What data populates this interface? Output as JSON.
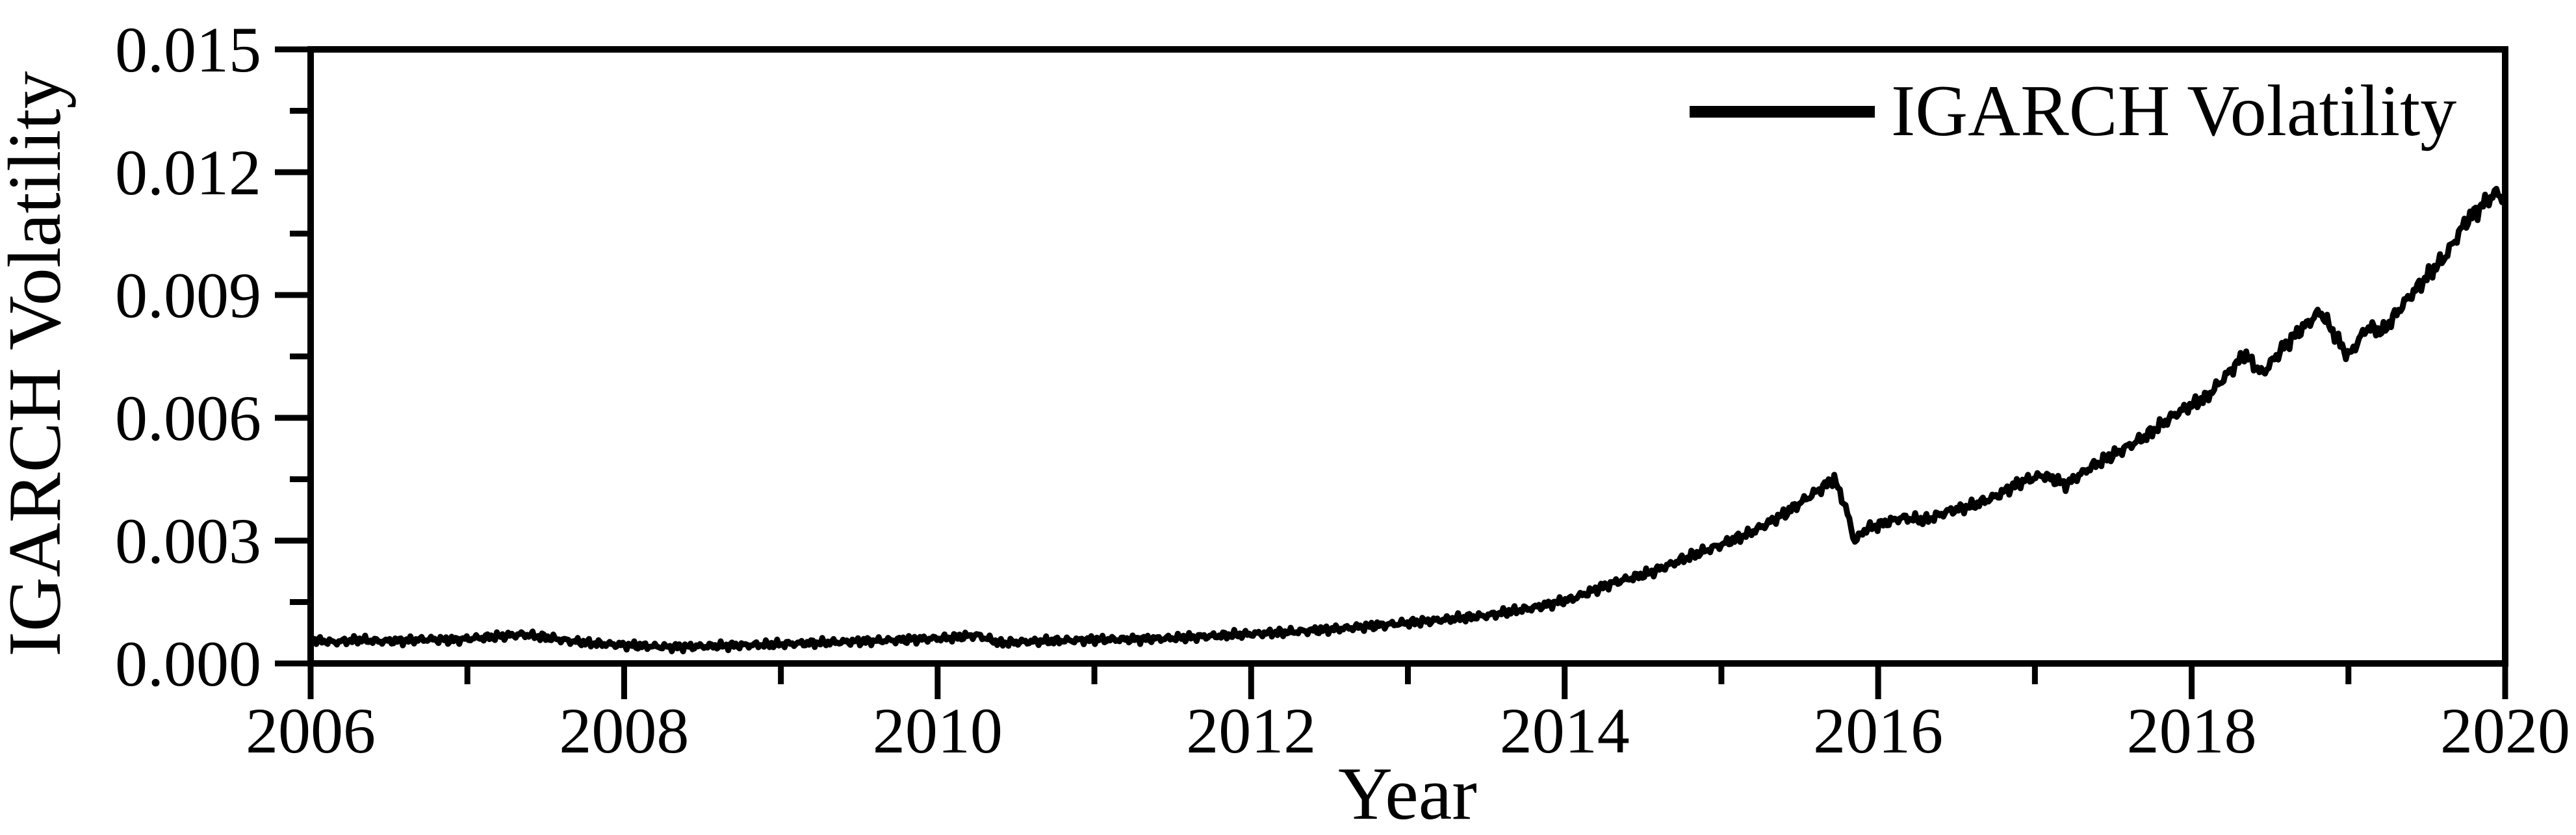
{
  "chart_data": {
    "type": "line",
    "title": "",
    "xlabel": "Year",
    "ylabel": "IGARCH Volatility",
    "grid": false,
    "legend_position": "top-right-inside",
    "legend": [
      {
        "label": "IGARCH Volatility",
        "color": "#000000"
      }
    ],
    "axis_color": "#000000",
    "line_color": "#000000",
    "background_color": "#ffffff",
    "xlim": [
      2006,
      2020
    ],
    "ylim": [
      0.0,
      0.015
    ],
    "x_ticks_major": [
      2006,
      2008,
      2010,
      2012,
      2014,
      2016,
      2018,
      2020
    ],
    "x_ticks_minor": [
      2007,
      2009,
      2011,
      2013,
      2015,
      2017,
      2019
    ],
    "x_tick_labels": [
      "2006",
      "2008",
      "2010",
      "2012",
      "2014",
      "2016",
      "2018",
      "2020"
    ],
    "y_ticks_major": [
      0.0,
      0.003,
      0.006,
      0.009,
      0.012,
      0.015
    ],
    "y_tick_minor_step": 0.0015,
    "y_tick_labels": [
      "0.000",
      "0.003",
      "0.006",
      "0.009",
      "0.012",
      "0.015"
    ],
    "series": [
      {
        "name": "IGARCH Volatility",
        "color": "#000000",
        "points": [
          [
            2006.0,
            0.00058
          ],
          [
            2006.15,
            0.00052
          ],
          [
            2006.3,
            0.00058
          ],
          [
            2006.45,
            0.00054
          ],
          [
            2006.6,
            0.00056
          ],
          [
            2006.75,
            0.00059
          ],
          [
            2006.9,
            0.00057
          ],
          [
            2007.05,
            0.00062
          ],
          [
            2007.2,
            0.00066
          ],
          [
            2007.35,
            0.00071
          ],
          [
            2007.5,
            0.00064
          ],
          [
            2007.65,
            0.00055
          ],
          [
            2007.8,
            0.00049
          ],
          [
            2008.0,
            0.00045
          ],
          [
            2008.3,
            0.0004
          ],
          [
            2008.6,
            0.00043
          ],
          [
            2008.9,
            0.00046
          ],
          [
            2009.2,
            0.0005
          ],
          [
            2009.5,
            0.00054
          ],
          [
            2009.8,
            0.00058
          ],
          [
            2010.05,
            0.00062
          ],
          [
            2010.25,
            0.00069
          ],
          [
            2010.4,
            0.0005
          ],
          [
            2010.55,
            0.00053
          ],
          [
            2010.8,
            0.00056
          ],
          [
            2011.0,
            0.00058
          ],
          [
            2011.2,
            0.00059
          ],
          [
            2011.45,
            0.00061
          ],
          [
            2011.7,
            0.00066
          ],
          [
            2012.0,
            0.00072
          ],
          [
            2012.3,
            0.00078
          ],
          [
            2012.6,
            0.00086
          ],
          [
            2012.9,
            0.00096
          ],
          [
            2013.2,
            0.00106
          ],
          [
            2013.5,
            0.00117
          ],
          [
            2013.8,
            0.00136
          ],
          [
            2014.05,
            0.00158
          ],
          [
            2014.3,
            0.00196
          ],
          [
            2014.55,
            0.00222
          ],
          [
            2014.8,
            0.00262
          ],
          [
            2015.0,
            0.0029
          ],
          [
            2015.2,
            0.00322
          ],
          [
            2015.4,
            0.00365
          ],
          [
            2015.55,
            0.00405
          ],
          [
            2015.72,
            0.0045
          ],
          [
            2015.79,
            0.00385
          ],
          [
            2015.85,
            0.00298
          ],
          [
            2015.92,
            0.00328
          ],
          [
            2016.0,
            0.00338
          ],
          [
            2016.15,
            0.00356
          ],
          [
            2016.3,
            0.0035
          ],
          [
            2016.45,
            0.00372
          ],
          [
            2016.6,
            0.00385
          ],
          [
            2016.75,
            0.00408
          ],
          [
            2016.9,
            0.00442
          ],
          [
            2017.05,
            0.0046
          ],
          [
            2017.2,
            0.00437
          ],
          [
            2017.35,
            0.00478
          ],
          [
            2017.5,
            0.0051
          ],
          [
            2017.7,
            0.00553
          ],
          [
            2017.9,
            0.0061
          ],
          [
            2018.1,
            0.00652
          ],
          [
            2018.34,
            0.00755
          ],
          [
            2018.45,
            0.00707
          ],
          [
            2018.6,
            0.0078
          ],
          [
            2018.82,
            0.0086
          ],
          [
            2019.0,
            0.0075
          ],
          [
            2019.12,
            0.00822
          ],
          [
            2019.22,
            0.0081
          ],
          [
            2019.35,
            0.00878
          ],
          [
            2019.5,
            0.00945
          ],
          [
            2019.62,
            0.00995
          ],
          [
            2019.75,
            0.0108
          ],
          [
            2019.87,
            0.01125
          ],
          [
            2019.95,
            0.01152
          ],
          [
            2020.0,
            0.0113
          ]
        ]
      }
    ]
  }
}
